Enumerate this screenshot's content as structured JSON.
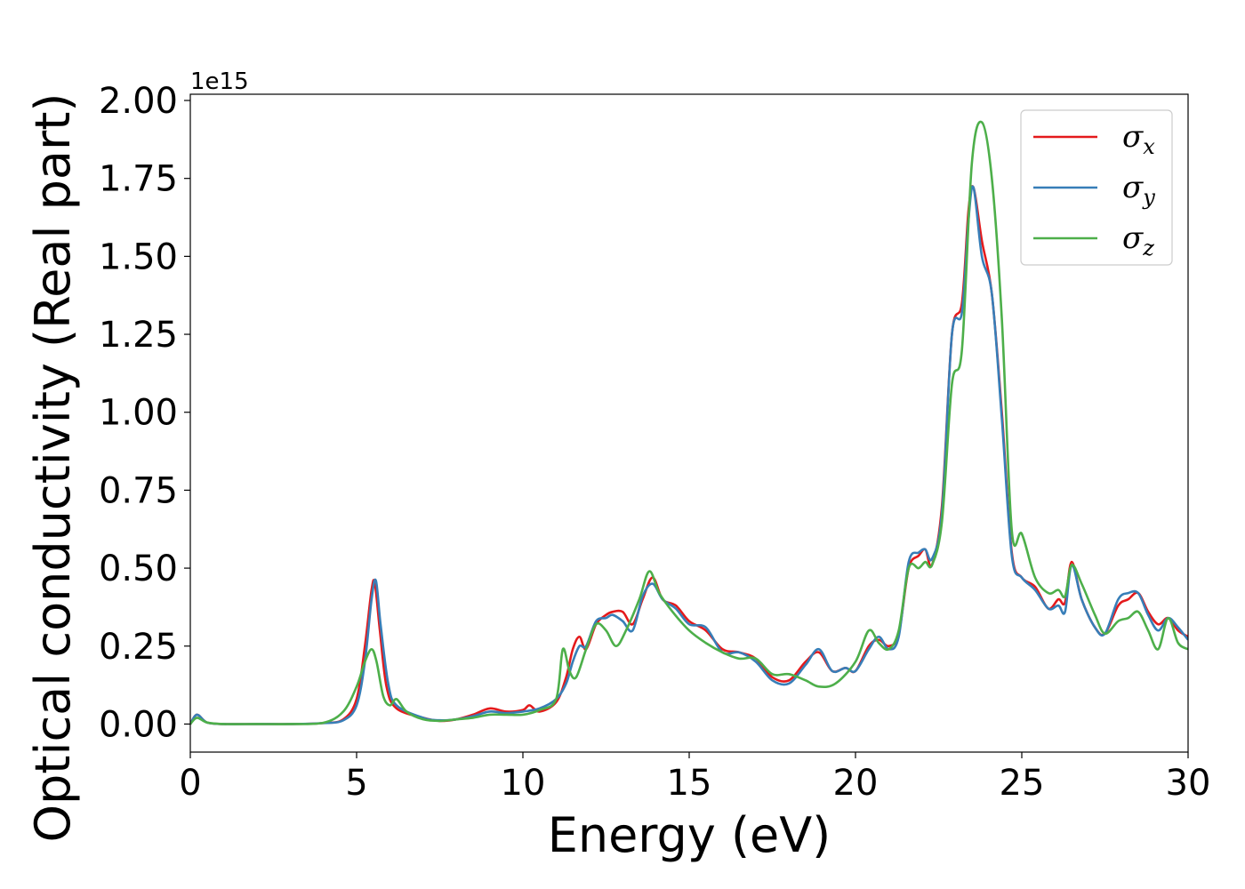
{
  "chart_data": {
    "type": "line",
    "title": "",
    "xlabel": "Energy (eV)",
    "ylabel": "Optical conductivity (Real part)",
    "y_offset_label": "1e15",
    "xlim": [
      0,
      30
    ],
    "ylim": [
      -0.09,
      2.02
    ],
    "xticks": [
      0,
      5,
      10,
      15,
      20,
      25,
      30
    ],
    "xtick_labels": [
      "0",
      "5",
      "10",
      "15",
      "20",
      "25",
      "30"
    ],
    "yticks": [
      0.0,
      0.25,
      0.5,
      0.75,
      1.0,
      1.25,
      1.5,
      1.75,
      2.0
    ],
    "ytick_labels": [
      "0.00",
      "0.25",
      "0.50",
      "0.75",
      "1.00",
      "1.25",
      "1.50",
      "1.75",
      "2.00"
    ],
    "grid": false,
    "legend_position": "top-right",
    "series": [
      {
        "name": "σx",
        "symbol": "σ",
        "subscript": "x",
        "color": "#e41a1c",
        "points": [
          [
            0,
            0.0
          ],
          [
            0.2,
            0.03
          ],
          [
            0.5,
            0.005
          ],
          [
            1,
            0.0
          ],
          [
            2,
            0.0
          ],
          [
            3,
            0.0
          ],
          [
            4,
            0.003
          ],
          [
            4.6,
            0.015
          ],
          [
            5.0,
            0.08
          ],
          [
            5.25,
            0.25
          ],
          [
            5.45,
            0.43
          ],
          [
            5.55,
            0.45
          ],
          [
            5.7,
            0.3
          ],
          [
            5.9,
            0.12
          ],
          [
            6.2,
            0.05
          ],
          [
            7,
            0.02
          ],
          [
            7.5,
            0.01
          ],
          [
            8,
            0.015
          ],
          [
            8.5,
            0.03
          ],
          [
            9,
            0.05
          ],
          [
            9.5,
            0.04
          ],
          [
            10,
            0.045
          ],
          [
            10.2,
            0.06
          ],
          [
            10.5,
            0.04
          ],
          [
            11,
            0.07
          ],
          [
            11.3,
            0.15
          ],
          [
            11.5,
            0.24
          ],
          [
            11.7,
            0.28
          ],
          [
            11.9,
            0.24
          ],
          [
            12.2,
            0.32
          ],
          [
            12.5,
            0.35
          ],
          [
            12.7,
            0.36
          ],
          [
            13,
            0.36
          ],
          [
            13.3,
            0.32
          ],
          [
            13.6,
            0.4
          ],
          [
            13.9,
            0.47
          ],
          [
            14.2,
            0.4
          ],
          [
            14.6,
            0.38
          ],
          [
            15,
            0.33
          ],
          [
            15.5,
            0.3
          ],
          [
            16,
            0.24
          ],
          [
            16.5,
            0.23
          ],
          [
            17,
            0.21
          ],
          [
            17.5,
            0.15
          ],
          [
            18,
            0.14
          ],
          [
            18.5,
            0.2
          ],
          [
            18.9,
            0.23
          ],
          [
            19.3,
            0.17
          ],
          [
            19.7,
            0.18
          ],
          [
            20,
            0.17
          ],
          [
            20.4,
            0.25
          ],
          [
            20.7,
            0.27
          ],
          [
            21,
            0.25
          ],
          [
            21.3,
            0.29
          ],
          [
            21.6,
            0.5
          ],
          [
            21.9,
            0.54
          ],
          [
            22.1,
            0.56
          ],
          [
            22.3,
            0.51
          ],
          [
            22.6,
            0.7
          ],
          [
            22.9,
            1.25
          ],
          [
            23.2,
            1.35
          ],
          [
            23.4,
            1.65
          ],
          [
            23.55,
            1.72
          ],
          [
            23.8,
            1.55
          ],
          [
            24.1,
            1.38
          ],
          [
            24.4,
            1.0
          ],
          [
            24.7,
            0.55
          ],
          [
            25.0,
            0.47
          ],
          [
            25.4,
            0.44
          ],
          [
            25.8,
            0.37
          ],
          [
            26.1,
            0.4
          ],
          [
            26.3,
            0.39
          ],
          [
            26.5,
            0.52
          ],
          [
            26.8,
            0.4
          ],
          [
            27.2,
            0.31
          ],
          [
            27.5,
            0.29
          ],
          [
            27.9,
            0.38
          ],
          [
            28.2,
            0.4
          ],
          [
            28.5,
            0.42
          ],
          [
            28.8,
            0.36
          ],
          [
            29.1,
            0.32
          ],
          [
            29.4,
            0.34
          ],
          [
            29.7,
            0.3
          ],
          [
            30,
            0.28
          ]
        ]
      },
      {
        "name": "σy",
        "symbol": "σ",
        "subscript": "y",
        "color": "#377eb8",
        "points": [
          [
            0,
            0.0
          ],
          [
            0.2,
            0.03
          ],
          [
            0.5,
            0.005
          ],
          [
            1,
            0.0
          ],
          [
            2,
            0.0
          ],
          [
            3,
            0.0
          ],
          [
            4,
            0.003
          ],
          [
            4.6,
            0.012
          ],
          [
            5.0,
            0.06
          ],
          [
            5.25,
            0.2
          ],
          [
            5.45,
            0.4
          ],
          [
            5.58,
            0.46
          ],
          [
            5.72,
            0.32
          ],
          [
            5.95,
            0.13
          ],
          [
            6.2,
            0.06
          ],
          [
            7,
            0.02
          ],
          [
            7.5,
            0.012
          ],
          [
            8,
            0.015
          ],
          [
            8.5,
            0.025
          ],
          [
            9,
            0.04
          ],
          [
            9.5,
            0.035
          ],
          [
            10,
            0.04
          ],
          [
            10.5,
            0.05
          ],
          [
            11,
            0.08
          ],
          [
            11.3,
            0.13
          ],
          [
            11.5,
            0.2
          ],
          [
            11.7,
            0.25
          ],
          [
            11.9,
            0.25
          ],
          [
            12.2,
            0.33
          ],
          [
            12.5,
            0.34
          ],
          [
            12.7,
            0.35
          ],
          [
            13,
            0.33
          ],
          [
            13.3,
            0.3
          ],
          [
            13.6,
            0.41
          ],
          [
            13.9,
            0.45
          ],
          [
            14.2,
            0.4
          ],
          [
            14.6,
            0.37
          ],
          [
            15,
            0.32
          ],
          [
            15.5,
            0.31
          ],
          [
            16,
            0.23
          ],
          [
            16.5,
            0.23
          ],
          [
            17,
            0.2
          ],
          [
            17.5,
            0.14
          ],
          [
            18,
            0.13
          ],
          [
            18.5,
            0.19
          ],
          [
            18.9,
            0.24
          ],
          [
            19.3,
            0.17
          ],
          [
            19.7,
            0.18
          ],
          [
            20,
            0.17
          ],
          [
            20.4,
            0.24
          ],
          [
            20.7,
            0.28
          ],
          [
            21,
            0.24
          ],
          [
            21.3,
            0.28
          ],
          [
            21.6,
            0.52
          ],
          [
            21.9,
            0.55
          ],
          [
            22.1,
            0.56
          ],
          [
            22.3,
            0.53
          ],
          [
            22.6,
            0.68
          ],
          [
            22.9,
            1.25
          ],
          [
            23.2,
            1.32
          ],
          [
            23.4,
            1.62
          ],
          [
            23.55,
            1.72
          ],
          [
            23.8,
            1.5
          ],
          [
            24.1,
            1.38
          ],
          [
            24.4,
            0.98
          ],
          [
            24.7,
            0.54
          ],
          [
            25.0,
            0.47
          ],
          [
            25.4,
            0.43
          ],
          [
            25.8,
            0.37
          ],
          [
            26.1,
            0.38
          ],
          [
            26.3,
            0.36
          ],
          [
            26.5,
            0.51
          ],
          [
            26.8,
            0.4
          ],
          [
            27.2,
            0.31
          ],
          [
            27.5,
            0.29
          ],
          [
            27.9,
            0.4
          ],
          [
            28.2,
            0.42
          ],
          [
            28.5,
            0.42
          ],
          [
            28.8,
            0.35
          ],
          [
            29.1,
            0.3
          ],
          [
            29.4,
            0.34
          ],
          [
            29.7,
            0.31
          ],
          [
            30,
            0.27
          ]
        ]
      },
      {
        "name": "σz",
        "symbol": "σ",
        "subscript": "z",
        "color": "#4daf4a",
        "points": [
          [
            0,
            0.0
          ],
          [
            0.2,
            0.02
          ],
          [
            0.5,
            0.005
          ],
          [
            1,
            0.0
          ],
          [
            2,
            0.0
          ],
          [
            3,
            0.0
          ],
          [
            4,
            0.004
          ],
          [
            4.6,
            0.04
          ],
          [
            5.0,
            0.12
          ],
          [
            5.25,
            0.2
          ],
          [
            5.45,
            0.24
          ],
          [
            5.6,
            0.2
          ],
          [
            5.8,
            0.09
          ],
          [
            6.0,
            0.06
          ],
          [
            6.2,
            0.08
          ],
          [
            6.5,
            0.04
          ],
          [
            7,
            0.015
          ],
          [
            7.5,
            0.01
          ],
          [
            8,
            0.015
          ],
          [
            8.5,
            0.02
          ],
          [
            9,
            0.03
          ],
          [
            9.5,
            0.03
          ],
          [
            10,
            0.03
          ],
          [
            10.5,
            0.045
          ],
          [
            11,
            0.08
          ],
          [
            11.2,
            0.24
          ],
          [
            11.4,
            0.17
          ],
          [
            11.6,
            0.15
          ],
          [
            11.9,
            0.24
          ],
          [
            12.2,
            0.32
          ],
          [
            12.5,
            0.3
          ],
          [
            12.8,
            0.25
          ],
          [
            13.1,
            0.3
          ],
          [
            13.5,
            0.4
          ],
          [
            13.8,
            0.49
          ],
          [
            14.1,
            0.42
          ],
          [
            14.5,
            0.36
          ],
          [
            15,
            0.3
          ],
          [
            15.5,
            0.26
          ],
          [
            16,
            0.23
          ],
          [
            16.5,
            0.21
          ],
          [
            17,
            0.21
          ],
          [
            17.5,
            0.16
          ],
          [
            18,
            0.16
          ],
          [
            18.5,
            0.14
          ],
          [
            18.9,
            0.12
          ],
          [
            19.4,
            0.13
          ],
          [
            20,
            0.2
          ],
          [
            20.4,
            0.3
          ],
          [
            20.7,
            0.26
          ],
          [
            21,
            0.24
          ],
          [
            21.3,
            0.3
          ],
          [
            21.6,
            0.5
          ],
          [
            21.9,
            0.5
          ],
          [
            22.1,
            0.52
          ],
          [
            22.3,
            0.51
          ],
          [
            22.6,
            0.65
          ],
          [
            22.9,
            1.09
          ],
          [
            23.2,
            1.2
          ],
          [
            23.5,
            1.8
          ],
          [
            23.8,
            1.93
          ],
          [
            24.1,
            1.75
          ],
          [
            24.4,
            1.3
          ],
          [
            24.7,
            0.62
          ],
          [
            25.0,
            0.61
          ],
          [
            25.4,
            0.47
          ],
          [
            25.8,
            0.42
          ],
          [
            26.1,
            0.43
          ],
          [
            26.3,
            0.41
          ],
          [
            26.5,
            0.51
          ],
          [
            26.8,
            0.45
          ],
          [
            27.2,
            0.35
          ],
          [
            27.5,
            0.29
          ],
          [
            27.9,
            0.33
          ],
          [
            28.2,
            0.34
          ],
          [
            28.5,
            0.36
          ],
          [
            28.8,
            0.3
          ],
          [
            29.1,
            0.24
          ],
          [
            29.4,
            0.34
          ],
          [
            29.7,
            0.26
          ],
          [
            30,
            0.24
          ]
        ]
      }
    ]
  }
}
